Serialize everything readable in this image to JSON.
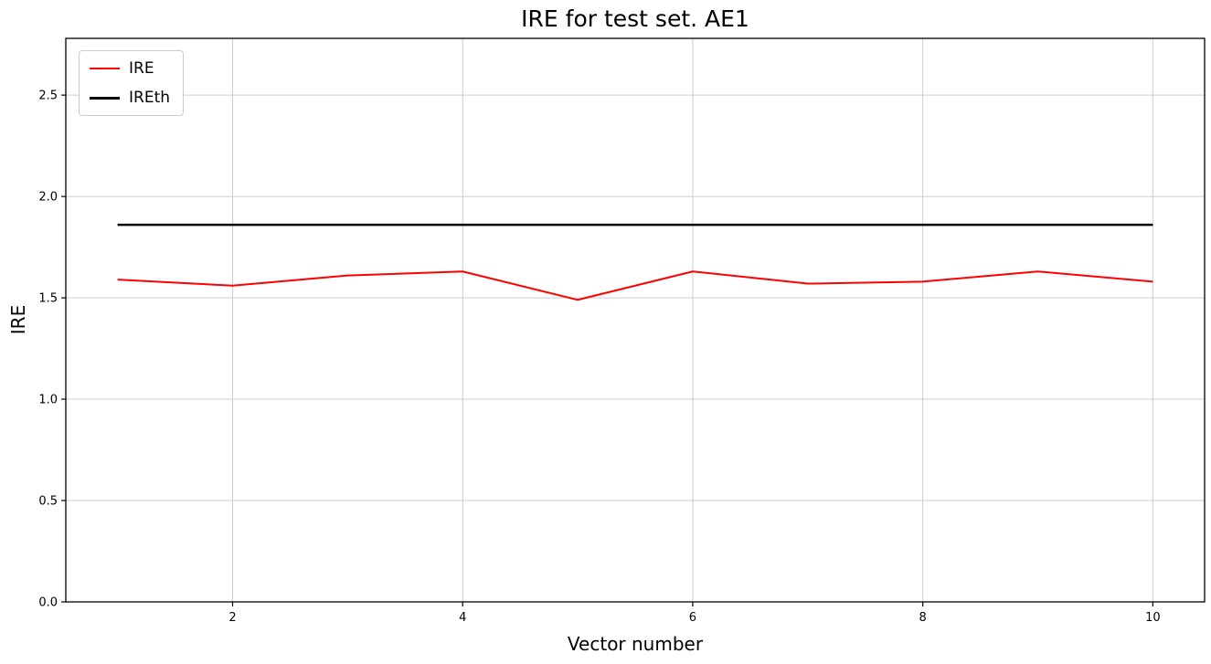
{
  "chart_data": {
    "type": "line",
    "title": "IRE for test set. AE1",
    "xlabel": "Vector number",
    "ylabel": "IRE",
    "xlim": [
      0.55,
      10.45
    ],
    "ylim": [
      0,
      2.78
    ],
    "x_ticks": [
      2,
      4,
      6,
      8,
      10
    ],
    "y_ticks": [
      0.0,
      0.5,
      1.0,
      1.5,
      2.0,
      2.5
    ],
    "grid": true,
    "grid_color": "#cccccc",
    "frame_color": "#000000",
    "legend_position": "upper-left",
    "x": [
      1,
      2,
      3,
      4,
      5,
      6,
      7,
      8,
      9,
      10
    ],
    "series": [
      {
        "name": "IRE",
        "color": "#ff0000",
        "linewidth": 2,
        "values": [
          1.59,
          1.56,
          1.61,
          1.63,
          1.49,
          1.63,
          1.57,
          1.58,
          1.63,
          1.58
        ]
      },
      {
        "name": "IREth",
        "color": "#000000",
        "linewidth": 2.5,
        "values": [
          1.86,
          1.86,
          1.86,
          1.86,
          1.86,
          1.86,
          1.86,
          1.86,
          1.86,
          1.86
        ]
      }
    ]
  }
}
